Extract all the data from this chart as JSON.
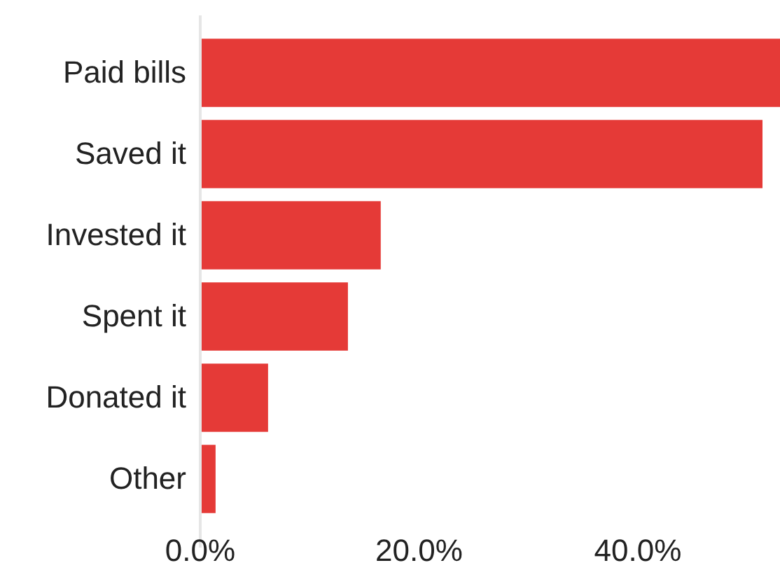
{
  "chart_data": {
    "type": "bar",
    "orientation": "horizontal",
    "categories": [
      "Paid bills",
      "Saved it",
      "Invested it",
      "Spent it",
      "Donated it",
      "Other"
    ],
    "values": [
      53,
      51.4,
      16.5,
      13.5,
      6.2,
      1.4
    ],
    "color": "#e53a37",
    "xlim": [
      0,
      53
    ],
    "xticks": [
      {
        "value": 0,
        "label": "0.0%"
      },
      {
        "value": 20,
        "label": "20.0%"
      },
      {
        "value": 40,
        "label": "40.0%"
      }
    ],
    "grid": false
  }
}
